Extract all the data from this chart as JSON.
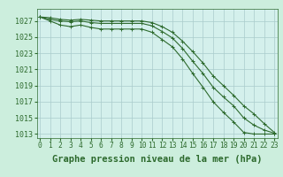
{
  "title": "Graphe pression niveau de la mer (hPa)",
  "background_color": "#cceedd",
  "plot_bg_color": "#d4f0ec",
  "grid_color": "#aacccc",
  "line_color": "#2d6a2d",
  "hours": [
    0,
    1,
    2,
    3,
    4,
    5,
    6,
    7,
    8,
    9,
    10,
    11,
    12,
    13,
    14,
    15,
    16,
    17,
    18,
    19,
    20,
    21,
    22,
    23
  ],
  "series_top": [
    1027.5,
    1027.4,
    1027.2,
    1027.1,
    1027.2,
    1027.1,
    1027.0,
    1027.0,
    1027.0,
    1027.0,
    1027.0,
    1026.8,
    1026.3,
    1025.6,
    1024.5,
    1023.2,
    1021.8,
    1020.2,
    1019.0,
    1017.8,
    1016.5,
    1015.5,
    1014.3,
    1013.2
  ],
  "series_mid": [
    1027.5,
    1027.2,
    1027.0,
    1026.9,
    1027.0,
    1026.8,
    1026.7,
    1026.7,
    1026.7,
    1026.7,
    1026.7,
    1026.4,
    1025.7,
    1024.9,
    1023.6,
    1022.0,
    1020.5,
    1018.8,
    1017.6,
    1016.5,
    1015.0,
    1014.1,
    1013.5,
    1013.1
  ],
  "series_bot": [
    1027.5,
    1027.0,
    1026.5,
    1026.3,
    1026.5,
    1026.2,
    1026.0,
    1026.0,
    1026.0,
    1026.0,
    1026.0,
    1025.6,
    1024.7,
    1023.8,
    1022.3,
    1020.5,
    1018.8,
    1017.0,
    1015.7,
    1014.5,
    1013.2,
    1013.0,
    1013.0,
    1013.0
  ],
  "ylim_min": 1012.5,
  "ylim_max": 1028.5,
  "yticks": [
    1013,
    1015,
    1017,
    1019,
    1021,
    1023,
    1025,
    1027
  ],
  "title_fontsize": 7.5,
  "tick_fontsize": 6.0,
  "marker_size": 3.5,
  "line_width": 0.8
}
